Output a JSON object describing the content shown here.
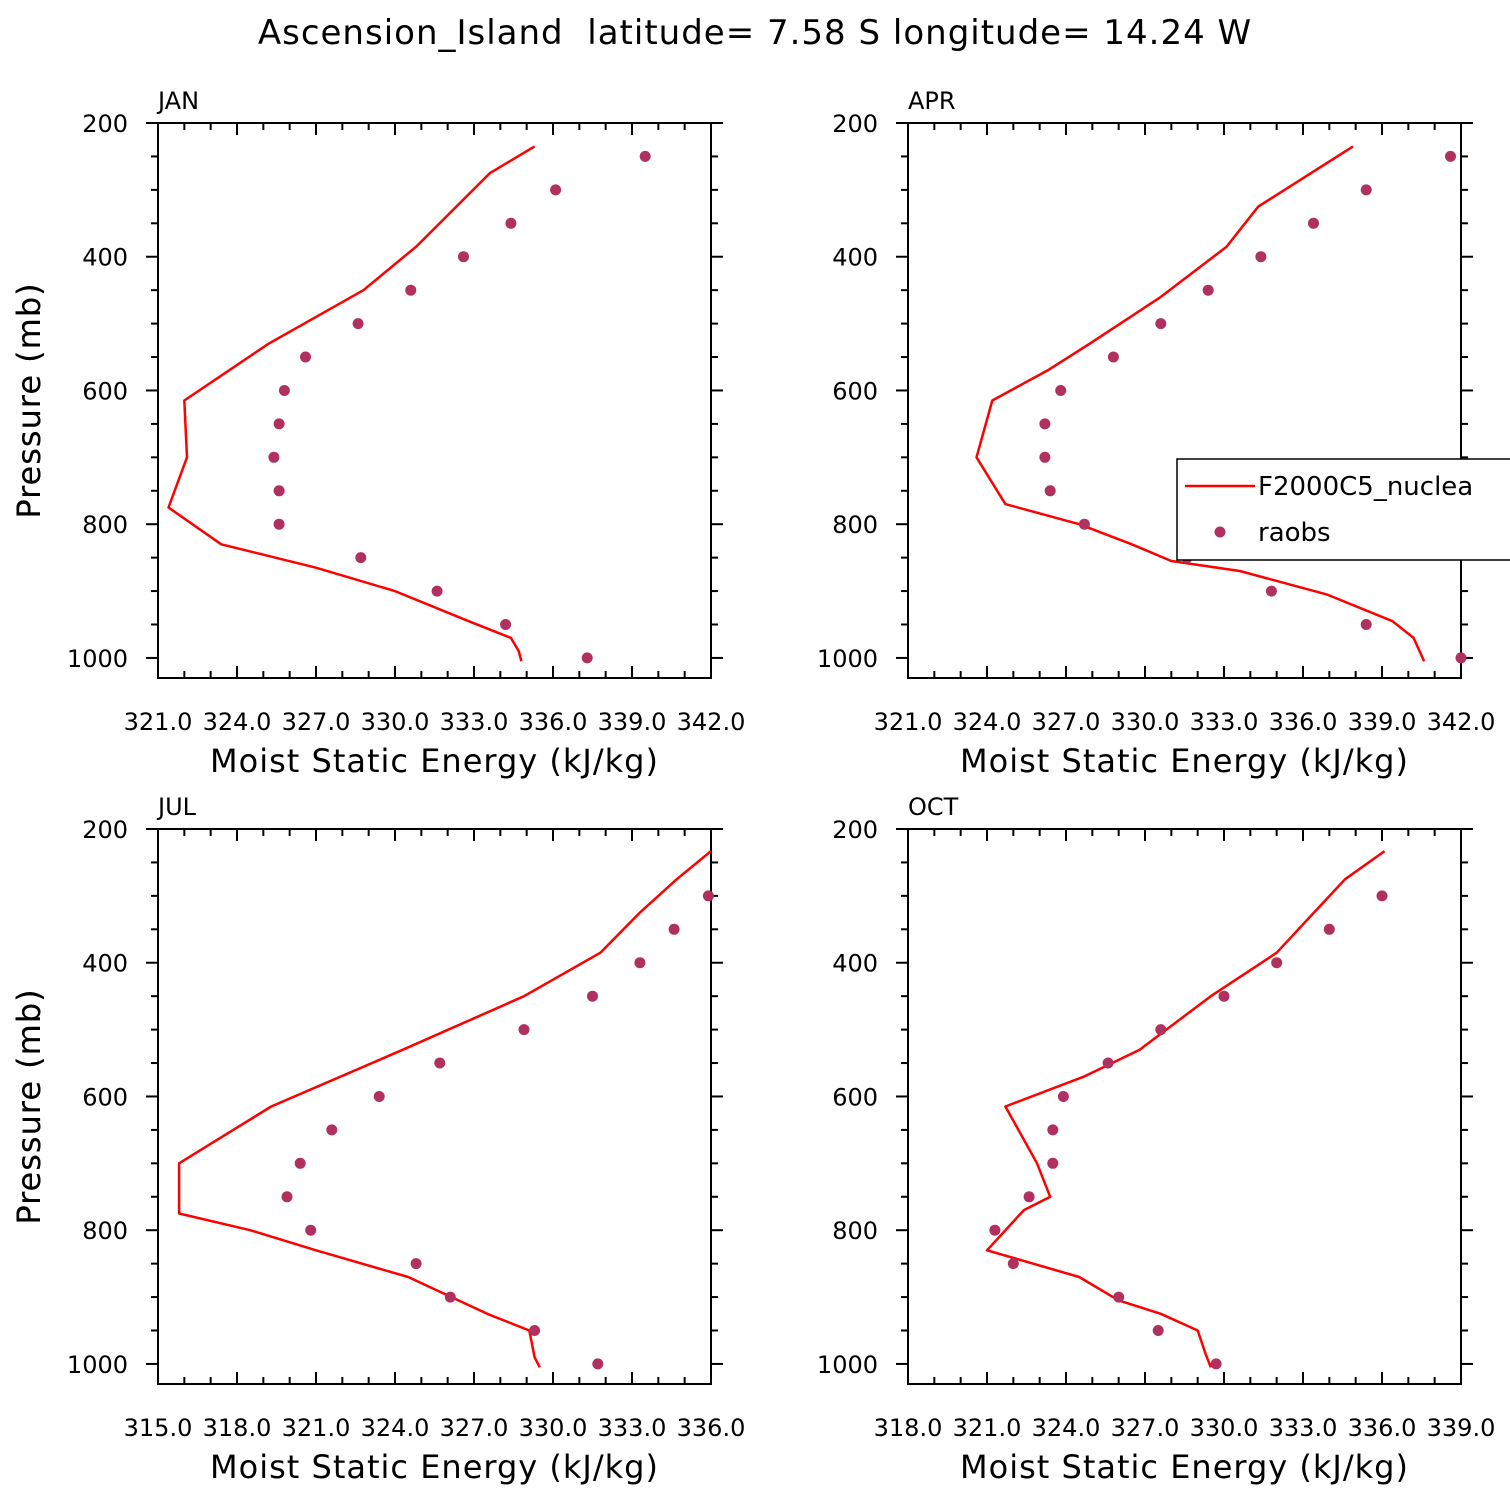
{
  "figure": {
    "title": "Ascension_Island  latitude= 7.58 S longitude= 14.24 W"
  },
  "legend": {
    "entries": [
      {
        "name": "F2000C5_nuclea",
        "marker": "line",
        "color": "#ff0000"
      },
      {
        "name": "raobs",
        "marker": "dot",
        "color": "#b03060"
      }
    ]
  },
  "chart_data": [
    {
      "type": "line",
      "title": "JAN",
      "xlabel": "Moist Static Energy (kJ/kg)",
      "ylabel": "Pressure (mb)",
      "xlim": [
        321.0,
        342.0
      ],
      "ylim": [
        1000,
        200
      ],
      "x_ticks": [
        321.0,
        324.0,
        327.0,
        330.0,
        333.0,
        336.0,
        339.0,
        342.0
      ],
      "x_tick_labels": [
        "321.0",
        "324.0",
        "327.0",
        "330.0",
        "333.0",
        "336.0",
        "339.0",
        "342.0"
      ],
      "y_ticks": [
        200,
        400,
        600,
        800,
        1000
      ],
      "y_tick_labels": [
        "200",
        "400",
        "600",
        "800",
        "1000"
      ],
      "series": [
        {
          "name": "F2000C5_nuclea",
          "kind": "line",
          "x": [
            335.3,
            333.6,
            330.8,
            328.8,
            325.2,
            322.0,
            322.1,
            321.4,
            323.4,
            327.0,
            330.0,
            332.8,
            334.4,
            334.7,
            334.8
          ],
          "y": [
            235,
            275,
            385,
            450,
            530,
            615,
            700,
            775,
            830,
            865,
            900,
            945,
            970,
            990,
            1005
          ]
        },
        {
          "name": "raobs",
          "kind": "scatter",
          "x": [
            339.5,
            336.1,
            334.4,
            332.6,
            330.6,
            328.6,
            326.6,
            325.8,
            325.6,
            325.4,
            325.6,
            325.6,
            328.7,
            331.6,
            334.2,
            337.3
          ],
          "y": [
            250,
            300,
            350,
            400,
            450,
            500,
            550,
            600,
            650,
            700,
            750,
            800,
            850,
            900,
            950,
            1000
          ]
        }
      ]
    },
    {
      "type": "line",
      "title": "APR",
      "xlabel": "Moist Static Energy (kJ/kg)",
      "ylabel": "Pressure (mb)",
      "xlim": [
        321.0,
        342.0
      ],
      "ylim": [
        1000,
        200
      ],
      "x_ticks": [
        321.0,
        324.0,
        327.0,
        330.0,
        333.0,
        336.0,
        339.0,
        342.0
      ],
      "x_tick_labels": [
        "321.0",
        "324.0",
        "327.0",
        "330.0",
        "333.0",
        "336.0",
        "339.0",
        "342.0"
      ],
      "y_ticks": [
        200,
        400,
        600,
        800,
        1000
      ],
      "y_tick_labels": [
        "200",
        "400",
        "600",
        "800",
        "1000"
      ],
      "series": [
        {
          "name": "F2000C5_nuclea",
          "kind": "line",
          "x": [
            337.9,
            336.3,
            334.3,
            333.1,
            330.6,
            327.9,
            326.3,
            324.2,
            323.6,
            324.7,
            327.5,
            329.5,
            331.0,
            333.6,
            336.9,
            339.4,
            340.2,
            340.6
          ],
          "y": [
            235,
            275,
            325,
            385,
            460,
            530,
            570,
            615,
            700,
            770,
            800,
            830,
            855,
            870,
            905,
            945,
            970,
            1005
          ]
        },
        {
          "name": "raobs",
          "kind": "scatter",
          "x": [
            341.6,
            338.4,
            336.4,
            334.4,
            332.4,
            330.6,
            328.8,
            326.8,
            326.2,
            326.2,
            326.4,
            327.7,
            331.6,
            334.8,
            338.4,
            342.0
          ],
          "y": [
            250,
            300,
            350,
            400,
            450,
            500,
            550,
            600,
            650,
            700,
            750,
            800,
            850,
            900,
            950,
            1000
          ]
        }
      ]
    },
    {
      "type": "line",
      "title": "JUL",
      "xlabel": "Moist Static Energy (kJ/kg)",
      "ylabel": "Pressure (mb)",
      "xlim": [
        315.0,
        336.0
      ],
      "ylim": [
        1000,
        200
      ],
      "x_ticks": [
        315.0,
        318.0,
        321.0,
        324.0,
        327.0,
        330.0,
        333.0,
        336.0
      ],
      "x_tick_labels": [
        "315.0",
        "318.0",
        "321.0",
        "324.0",
        "327.0",
        "330.0",
        "333.0",
        "336.0"
      ],
      "y_ticks": [
        200,
        400,
        600,
        800,
        1000
      ],
      "y_tick_labels": [
        "200",
        "400",
        "600",
        "800",
        "1000"
      ],
      "series": [
        {
          "name": "F2000C5_nuclea",
          "kind": "line",
          "x": [
            336.0,
            334.7,
            333.3,
            331.8,
            328.9,
            324.3,
            319.3,
            315.8,
            315.8,
            318.5,
            321.0,
            324.5,
            327.5,
            329.1,
            329.3,
            329.5
          ],
          "y": [
            233,
            275,
            325,
            385,
            450,
            530,
            615,
            700,
            775,
            800,
            830,
            870,
            925,
            950,
            990,
            1005
          ]
        },
        {
          "name": "raobs",
          "kind": "scatter",
          "x": [
            335.9,
            334.6,
            333.3,
            331.5,
            328.9,
            325.7,
            323.4,
            321.6,
            320.4,
            319.9,
            320.8,
            324.8,
            326.1,
            329.3,
            331.7
          ],
          "y": [
            300,
            350,
            400,
            450,
            500,
            550,
            600,
            650,
            700,
            750,
            800,
            850,
            900,
            950,
            1000
          ]
        }
      ]
    },
    {
      "type": "line",
      "title": "OCT",
      "xlabel": "Moist Static Energy (kJ/kg)",
      "ylabel": "Pressure (mb)",
      "xlim": [
        318.0,
        339.0
      ],
      "ylim": [
        1000,
        200
      ],
      "x_ticks": [
        318.0,
        321.0,
        324.0,
        327.0,
        330.0,
        333.0,
        336.0,
        339.0
      ],
      "x_tick_labels": [
        "318.0",
        "321.0",
        "324.0",
        "327.0",
        "330.0",
        "333.0",
        "336.0",
        "339.0"
      ],
      "y_ticks": [
        200,
        400,
        600,
        800,
        1000
      ],
      "y_tick_labels": [
        "200",
        "400",
        "600",
        "800",
        "1000"
      ],
      "series": [
        {
          "name": "F2000C5_nuclea",
          "kind": "line",
          "x": [
            336.1,
            334.6,
            333.3,
            332.0,
            329.5,
            326.8,
            324.7,
            321.7,
            322.9,
            323.4,
            322.4,
            321.0,
            324.5,
            326.0,
            327.6,
            329.0,
            329.3,
            329.5
          ],
          "y": [
            233,
            275,
            330,
            385,
            450,
            530,
            570,
            615,
            700,
            750,
            770,
            830,
            870,
            905,
            925,
            950,
            985,
            1005
          ]
        },
        {
          "name": "raobs",
          "kind": "scatter",
          "x": [
            336.0,
            334.0,
            332.0,
            330.0,
            327.6,
            325.6,
            323.9,
            323.5,
            323.5,
            322.6,
            321.3,
            322.0,
            326.0,
            327.5,
            329.7
          ],
          "y": [
            300,
            350,
            400,
            450,
            500,
            550,
            600,
            650,
            700,
            750,
            800,
            850,
            900,
            950,
            1000
          ]
        }
      ]
    }
  ]
}
